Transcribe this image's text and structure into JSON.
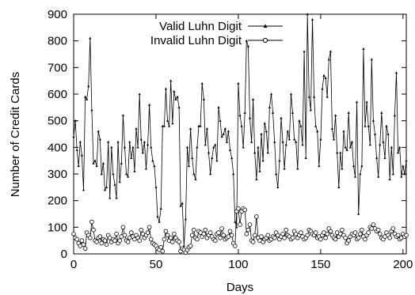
{
  "chart_data": {
    "type": "line",
    "xlabel": "Days",
    "ylabel": "Number of Credit Cards",
    "xlim": [
      0,
      202
    ],
    "ylim": [
      0,
      900
    ],
    "xticks": [
      0,
      50,
      100,
      150,
      200
    ],
    "yticks": [
      0,
      100,
      200,
      300,
      400,
      500,
      600,
      700,
      800,
      900
    ],
    "grid": false,
    "legend_position": "top-right",
    "series": [
      {
        "name": "Valid Luhn Digit",
        "marker": "triangle",
        "color": "#000000",
        "x": [
          0,
          1,
          2,
          3,
          4,
          5,
          6,
          7,
          8,
          9,
          10,
          11,
          12,
          13,
          14,
          15,
          16,
          17,
          18,
          19,
          20,
          21,
          22,
          23,
          24,
          25,
          26,
          27,
          28,
          29,
          30,
          31,
          32,
          33,
          34,
          35,
          36,
          37,
          38,
          39,
          40,
          41,
          42,
          43,
          44,
          45,
          46,
          47,
          48,
          49,
          50,
          51,
          52,
          53,
          54,
          55,
          56,
          57,
          58,
          59,
          60,
          61,
          62,
          63,
          64,
          65,
          66,
          67,
          68,
          69,
          70,
          71,
          72,
          73,
          74,
          75,
          76,
          77,
          78,
          79,
          80,
          81,
          82,
          83,
          84,
          85,
          86,
          87,
          88,
          89,
          90,
          91,
          92,
          93,
          94,
          95,
          96,
          97,
          98,
          99,
          100,
          101,
          102,
          103,
          104,
          105,
          106,
          107,
          108,
          109,
          110,
          111,
          112,
          113,
          114,
          115,
          116,
          117,
          118,
          119,
          120,
          121,
          122,
          123,
          124,
          125,
          126,
          127,
          128,
          129,
          130,
          131,
          132,
          133,
          134,
          135,
          136,
          137,
          138,
          139,
          140,
          141,
          142,
          143,
          144,
          145,
          146,
          147,
          148,
          149,
          150,
          151,
          152,
          153,
          154,
          155,
          156,
          157,
          158,
          159,
          160,
          161,
          162,
          163,
          164,
          165,
          166,
          167,
          168,
          169,
          170,
          171,
          172,
          173,
          174,
          175,
          176,
          177,
          178,
          179,
          180,
          181,
          182,
          183,
          184,
          185,
          186,
          187,
          188,
          189,
          190,
          191,
          192,
          193,
          194,
          195,
          196,
          197,
          198,
          199,
          200,
          201,
          202
        ],
        "values": [
          440,
          500,
          390,
          330,
          420,
          370,
          240,
          590,
          580,
          630,
          810,
          540,
          340,
          350,
          330,
          460,
          430,
          300,
          340,
          240,
          250,
          420,
          210,
          400,
          300,
          260,
          210,
          420,
          270,
          340,
          520,
          400,
          300,
          290,
          420,
          360,
          400,
          310,
          470,
          400,
          600,
          430,
          380,
          420,
          320,
          410,
          560,
          400,
          350,
          330,
          250,
          140,
          120,
          170,
          480,
          480,
          620,
          500,
          480,
          650,
          490,
          610,
          580,
          590,
          550,
          180,
          190,
          30,
          130,
          400,
          330,
          470,
          360,
          300,
          280,
          400,
          480,
          480,
          640,
          580,
          410,
          470,
          380,
          300,
          360,
          400,
          410,
          350,
          550,
          500,
          440,
          450,
          470,
          420,
          460,
          390,
          360,
          300,
          120,
          100,
          640,
          520,
          480,
          400,
          530,
          800,
          780,
          510,
          420,
          580,
          380,
          280,
          400,
          310,
          450,
          350,
          490,
          460,
          380,
          550,
          600,
          530,
          420,
          300,
          250,
          350,
          510,
          420,
          320,
          410,
          460,
          430,
          600,
          530,
          430,
          420,
          320,
          500,
          480,
          410,
          760,
          360,
          900,
          590,
          540,
          880,
          590,
          480,
          460,
          330,
          430,
          620,
          670,
          660,
          590,
          730,
          760,
          470,
          430,
          520,
          380,
          250,
          380,
          320,
          460,
          400,
          390,
          530,
          400,
          420,
          330,
          290,
          570,
          150,
          300,
          330,
          770,
          480,
          570,
          480,
          410,
          730,
          500,
          450,
          360,
          290,
          410,
          530,
          420,
          360,
          480,
          450,
          280,
          400,
          300,
          520,
          680,
          380,
          400,
          290,
          330,
          300,
          350
        ]
      },
      {
        "name": "Invalid Luhn Digit",
        "marker": "circle",
        "color": "#000000",
        "x": [
          0,
          1,
          2,
          3,
          4,
          5,
          6,
          7,
          8,
          9,
          10,
          11,
          12,
          13,
          14,
          15,
          16,
          17,
          18,
          19,
          20,
          21,
          22,
          23,
          24,
          25,
          26,
          27,
          28,
          29,
          30,
          31,
          32,
          33,
          34,
          35,
          36,
          37,
          38,
          39,
          40,
          41,
          42,
          43,
          44,
          45,
          46,
          47,
          48,
          49,
          50,
          51,
          52,
          53,
          54,
          55,
          56,
          57,
          58,
          59,
          60,
          61,
          62,
          63,
          64,
          65,
          66,
          67,
          68,
          69,
          70,
          71,
          72,
          73,
          74,
          75,
          76,
          77,
          78,
          79,
          80,
          81,
          82,
          83,
          84,
          85,
          86,
          87,
          88,
          89,
          90,
          91,
          92,
          93,
          94,
          95,
          96,
          97,
          98,
          99,
          100,
          101,
          102,
          103,
          104,
          105,
          106,
          107,
          108,
          109,
          110,
          111,
          112,
          113,
          114,
          115,
          116,
          117,
          118,
          119,
          120,
          121,
          122,
          123,
          124,
          125,
          126,
          127,
          128,
          129,
          130,
          131,
          132,
          133,
          134,
          135,
          136,
          137,
          138,
          139,
          140,
          141,
          142,
          143,
          144,
          145,
          146,
          147,
          148,
          149,
          150,
          151,
          152,
          153,
          154,
          155,
          156,
          157,
          158,
          159,
          160,
          161,
          162,
          163,
          164,
          165,
          166,
          167,
          168,
          169,
          170,
          171,
          172,
          173,
          174,
          175,
          176,
          177,
          178,
          179,
          180,
          181,
          182,
          183,
          184,
          185,
          186,
          187,
          188,
          189,
          190,
          191,
          192,
          193,
          194,
          195,
          196,
          197,
          198,
          199,
          200,
          201,
          202
        ],
        "values": [
          75,
          60,
          55,
          40,
          30,
          50,
          35,
          20,
          80,
          70,
          60,
          120,
          90,
          50,
          45,
          60,
          65,
          40,
          55,
          50,
          35,
          70,
          60,
          45,
          55,
          50,
          75,
          40,
          50,
          65,
          100,
          70,
          50,
          45,
          60,
          80,
          65,
          55,
          70,
          60,
          50,
          90,
          75,
          60,
          70,
          80,
          100,
          55,
          40,
          35,
          30,
          20,
          15,
          25,
          10,
          55,
          85,
          70,
          50,
          60,
          45,
          75,
          60,
          50,
          45,
          10,
          20,
          15,
          5,
          15,
          25,
          30,
          70,
          90,
          60,
          55,
          85,
          80,
          65,
          75,
          90,
          60,
          70,
          80,
          65,
          55,
          50,
          75,
          80,
          60,
          95,
          70,
          55,
          60,
          65,
          85,
          70,
          40,
          30,
          160,
          170,
          110,
          160,
          170,
          165,
          75,
          90,
          110,
          50,
          45,
          70,
          140,
          60,
          50,
          65,
          45,
          55,
          60,
          70,
          50,
          55,
          65,
          60,
          80,
          70,
          55,
          65,
          75,
          60,
          90,
          70,
          65,
          55,
          60,
          85,
          75,
          60,
          70,
          80,
          65,
          55,
          60,
          70,
          90,
          85,
          75,
          70,
          80,
          60,
          65,
          55,
          70,
          80,
          60,
          75,
          95,
          85,
          70,
          60,
          55,
          80,
          65,
          75,
          90,
          70,
          60,
          40,
          50,
          65,
          75,
          70,
          80,
          55,
          60,
          75,
          90,
          65,
          55,
          70,
          80,
          100,
          95,
          110,
          95,
          85,
          90,
          75,
          60,
          55,
          65,
          80,
          70,
          60,
          85,
          95,
          75,
          65,
          70,
          55,
          60,
          75,
          65,
          70
        ]
      }
    ]
  }
}
